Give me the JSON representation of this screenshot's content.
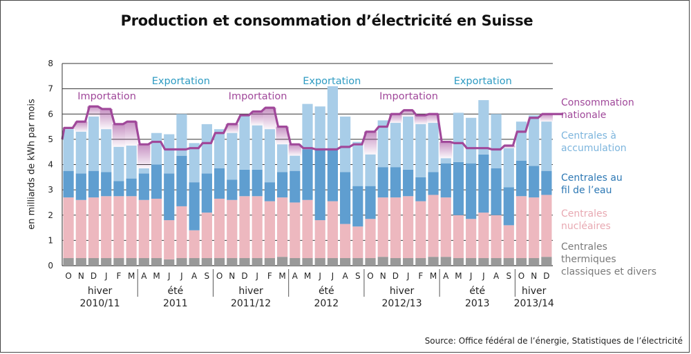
{
  "chart_data": {
    "type": "bar",
    "title": "Production et consommation d’électricité en Suisse",
    "ylabel": "en milliards de kWh par mois",
    "ylim": [
      0,
      8
    ],
    "yticks": [
      0,
      1,
      2,
      3,
      4,
      5,
      6,
      7,
      8
    ],
    "grid": true,
    "source": "Source: Office fédéral de l’énergie, Statistiques de l’électricité",
    "categories": [
      "O",
      "N",
      "D",
      "J",
      "F",
      "M",
      "A",
      "M",
      "J",
      "J",
      "A",
      "S",
      "O",
      "N",
      "D",
      "J",
      "F",
      "M",
      "A",
      "M",
      "J",
      "J",
      "A",
      "S",
      "O",
      "N",
      "D",
      "J",
      "F",
      "M",
      "A",
      "M",
      "J",
      "J",
      "A",
      "S",
      "O",
      "N",
      "D"
    ],
    "season_labels": [
      {
        "line1": "hiver",
        "line2": "2010/11"
      },
      {
        "line1": "été",
        "line2": "2011"
      },
      {
        "line1": "hiver",
        "line2": "2011/12"
      },
      {
        "line1": "été",
        "line2": "2012"
      },
      {
        "line1": "hiver",
        "line2": "2012/13"
      },
      {
        "line1": "été",
        "line2": "2013"
      },
      {
        "line1": "hiver",
        "line2": "2013/14"
      }
    ],
    "series": [
      {
        "name": "Centrales thermiques classiques et divers",
        "color": "#999999",
        "values": [
          0.3,
          0.3,
          0.3,
          0.3,
          0.3,
          0.3,
          0.3,
          0.3,
          0.25,
          0.3,
          0.3,
          0.3,
          0.3,
          0.3,
          0.3,
          0.3,
          0.3,
          0.35,
          0.3,
          0.3,
          0.3,
          0.3,
          0.3,
          0.3,
          0.3,
          0.35,
          0.3,
          0.3,
          0.3,
          0.35,
          0.35,
          0.3,
          0.3,
          0.3,
          0.3,
          0.3,
          0.3,
          0.3,
          0.35
        ]
      },
      {
        "name": "Centrales nucléaires",
        "color": "#edb8bf",
        "values": [
          2.4,
          2.3,
          2.4,
          2.45,
          2.45,
          2.45,
          2.3,
          2.35,
          1.55,
          2.05,
          1.1,
          1.8,
          2.35,
          2.3,
          2.45,
          2.45,
          2.25,
          2.35,
          2.2,
          2.3,
          1.5,
          2.25,
          1.35,
          1.25,
          1.55,
          2.35,
          2.4,
          2.45,
          2.25,
          2.45,
          2.35,
          1.7,
          1.55,
          1.8,
          1.7,
          1.3,
          2.45,
          2.4,
          2.45
        ]
      },
      {
        "name": "Centrales au fil de l’eau",
        "color": "#5f9ed0",
        "values": [
          1.05,
          1.05,
          1.05,
          0.95,
          0.6,
          0.7,
          1.05,
          1.35,
          1.85,
          2.0,
          1.9,
          1.55,
          1.2,
          0.8,
          1.05,
          1.05,
          0.75,
          1.0,
          1.25,
          2.0,
          2.8,
          2.05,
          2.05,
          1.6,
          1.3,
          1.2,
          1.2,
          1.05,
          0.95,
          0.9,
          1.35,
          2.1,
          2.2,
          2.3,
          1.85,
          1.5,
          1.4,
          1.25,
          0.95
        ]
      },
      {
        "name": "Centrales à accumulation",
        "color": "#a8cde8",
        "values": [
          1.65,
          1.65,
          2.15,
          1.7,
          1.35,
          1.3,
          0.2,
          1.25,
          1.55,
          1.65,
          1.55,
          1.95,
          1.55,
          1.85,
          2.15,
          1.75,
          2.1,
          1.1,
          0.6,
          1.8,
          1.7,
          2.5,
          2.2,
          1.75,
          1.25,
          1.85,
          1.75,
          2.1,
          2.1,
          1.95,
          0.2,
          1.95,
          1.8,
          2.15,
          2.15,
          1.55,
          1.55,
          2.0,
          1.95
        ]
      },
      {
        "name": "Consommation nationale",
        "color": "#a0489a",
        "values": [
          5.45,
          5.7,
          6.3,
          6.2,
          5.6,
          5.7,
          4.8,
          4.9,
          4.6,
          4.6,
          4.65,
          4.85,
          5.25,
          5.6,
          5.95,
          6.1,
          6.25,
          5.5,
          4.8,
          4.65,
          4.6,
          4.6,
          4.7,
          4.8,
          5.3,
          5.5,
          6.0,
          6.15,
          5.95,
          6.0,
          4.9,
          4.85,
          4.65,
          4.65,
          4.6,
          4.75,
          5.3,
          5.85,
          6.0
        ]
      }
    ],
    "annotations": [
      {
        "text": "Importation",
        "color": "#a0489a"
      },
      {
        "text": "Exportation",
        "color": "#2e9bc2"
      },
      {
        "text": "Importation",
        "color": "#a0489a"
      },
      {
        "text": "Exportation",
        "color": "#2e9bc2"
      },
      {
        "text": "Importation",
        "color": "#a0489a"
      },
      {
        "text": "Exportation",
        "color": "#2e9bc2"
      }
    ],
    "legend": [
      {
        "lines": [
          "Consommation",
          "nationale"
        ],
        "color": "#a0489a"
      },
      {
        "lines": [
          "Centrales à",
          "accumulation"
        ],
        "color": "#7db5dd"
      },
      {
        "lines": [
          "Centrales au",
          "fil de l’eau"
        ],
        "color": "#2d78b4"
      },
      {
        "lines": [
          "Centrales",
          "nucléaires"
        ],
        "color": "#e8a9b2"
      },
      {
        "lines": [
          "Centrales",
          "thermiques",
          "classiques et divers"
        ],
        "color": "#7a7a7a"
      }
    ]
  }
}
